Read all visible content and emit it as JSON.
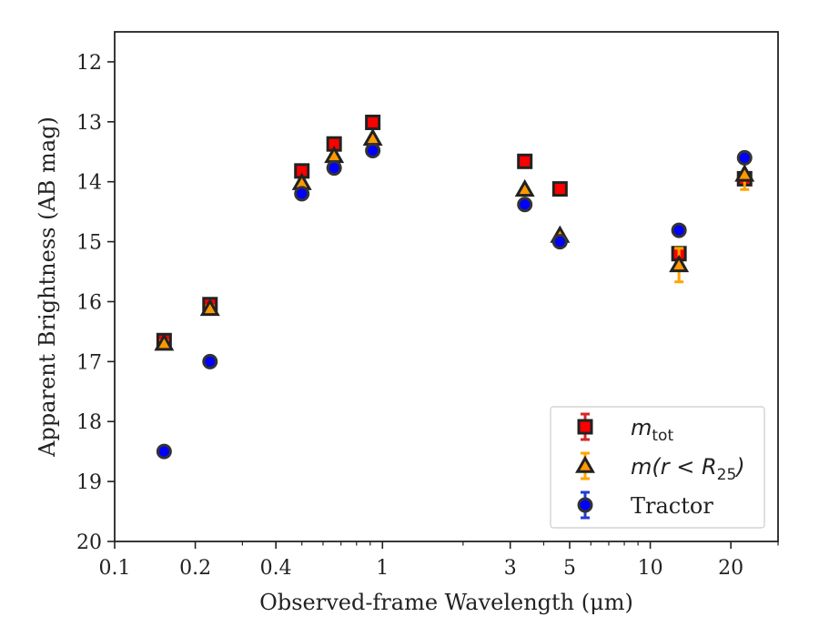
{
  "chart_data": {
    "type": "scatter",
    "title": "",
    "xlabel": "Observed-frame Wavelength (μm)",
    "ylabel": "Apparent Brightness (AB mag)",
    "xscale": "log",
    "xlim": [
      0.1,
      30
    ],
    "ylim": [
      20,
      11.5
    ],
    "y_inverted": true,
    "x_major_ticks": [
      {
        "value": 0.1,
        "label": "0.1"
      },
      {
        "value": 0.2,
        "label": "0.2"
      },
      {
        "value": 0.4,
        "label": "0.4"
      },
      {
        "value": 1,
        "label": "1"
      },
      {
        "value": 3,
        "label": "3"
      },
      {
        "value": 5,
        "label": "5"
      },
      {
        "value": 10,
        "label": "10"
      },
      {
        "value": 20,
        "label": "20"
      }
    ],
    "x_minor_ticks": [
      0.3,
      0.5,
      0.6,
      0.7,
      0.8,
      0.9,
      2,
      4,
      6,
      7,
      8,
      9,
      30
    ],
    "y_ticks": [
      {
        "value": 12,
        "label": "12"
      },
      {
        "value": 13,
        "label": "13"
      },
      {
        "value": 14,
        "label": "14"
      },
      {
        "value": 15,
        "label": "15"
      },
      {
        "value": 16,
        "label": "16"
      },
      {
        "value": 17,
        "label": "17"
      },
      {
        "value": 18,
        "label": "18"
      },
      {
        "value": 19,
        "label": "19"
      },
      {
        "value": 20,
        "label": "20"
      }
    ],
    "grid": false,
    "legend_position": "bottom-right",
    "series": [
      {
        "key": "tot",
        "legend": {
          "base": "m",
          "sub": "tot",
          "suffix": ""
        },
        "marker": "square",
        "fill": "#ff0000",
        "edge": "#222222",
        "errcolor": "#d62728",
        "points": [
          {
            "x": 0.153,
            "y": 16.65,
            "err": 0.05
          },
          {
            "x": 0.227,
            "y": 16.05,
            "err": 0.05
          },
          {
            "x": 0.5,
            "y": 13.82,
            "err": 0.03
          },
          {
            "x": 0.66,
            "y": 13.37,
            "err": 0.03
          },
          {
            "x": 0.92,
            "y": 13.01,
            "err": 0.03
          },
          {
            "x": 3.4,
            "y": 13.66,
            "err": 0.03
          },
          {
            "x": 4.6,
            "y": 14.12,
            "err": 0.03
          },
          {
            "x": 12.8,
            "y": 15.2,
            "err": 0.05
          },
          {
            "x": 22.5,
            "y": 13.95,
            "err": 0.1
          }
        ]
      },
      {
        "key": "r25",
        "legend": {
          "base": "m(r < R",
          "sub": "25",
          "suffix": ")"
        },
        "marker": "triangle",
        "fill": "#ff9900",
        "edge": "#222222",
        "errcolor": "#ffa500",
        "points": [
          {
            "x": 0.153,
            "y": 16.7,
            "err": 0.05
          },
          {
            "x": 0.227,
            "y": 16.12,
            "err": 0.05
          },
          {
            "x": 0.5,
            "y": 14.02,
            "err": 0.03
          },
          {
            "x": 0.66,
            "y": 13.57,
            "err": 0.03
          },
          {
            "x": 0.92,
            "y": 13.28,
            "err": 0.03
          },
          {
            "x": 3.4,
            "y": 14.13,
            "err": 0.03
          },
          {
            "x": 4.6,
            "y": 14.9,
            "err": 0.03
          },
          {
            "x": 12.8,
            "y": 15.39,
            "err": 0.28
          },
          {
            "x": 22.5,
            "y": 13.88,
            "err": 0.25
          }
        ]
      },
      {
        "key": "tractor",
        "legend": {
          "base": "Tractor",
          "sub": "",
          "suffix": ""
        },
        "marker": "circle",
        "fill": "#0000ff",
        "edge": "#333333",
        "errcolor": "#1f3bd6",
        "points": [
          {
            "x": 0.153,
            "y": 18.5,
            "err": 0.03
          },
          {
            "x": 0.227,
            "y": 17.0,
            "err": 0.03
          },
          {
            "x": 0.5,
            "y": 14.2,
            "err": 0.03
          },
          {
            "x": 0.66,
            "y": 13.77,
            "err": 0.03
          },
          {
            "x": 0.92,
            "y": 13.48,
            "err": 0.03
          },
          {
            "x": 3.4,
            "y": 14.38,
            "err": 0.03
          },
          {
            "x": 4.6,
            "y": 15.0,
            "err": 0.03
          },
          {
            "x": 12.8,
            "y": 14.81,
            "err": 0.03
          },
          {
            "x": 22.5,
            "y": 13.6,
            "err": 0.03
          }
        ]
      }
    ]
  }
}
